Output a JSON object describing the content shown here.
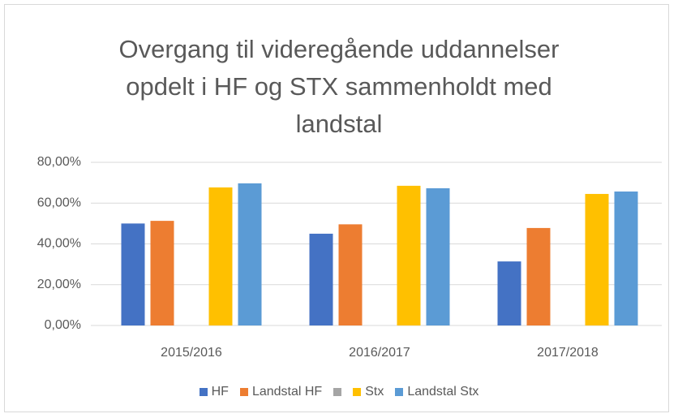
{
  "chart_data": {
    "type": "bar",
    "title": "Overgang til videregående uddannelser opdelt i HF og STX sammenholdt med landstal",
    "categories": [
      "2015/2016",
      "2016/2017",
      "2017/2018"
    ],
    "series": [
      {
        "name": "HF",
        "color": "#4472c4",
        "values": [
          50,
          45,
          31.4
        ]
      },
      {
        "name": "Landstal HF",
        "color": "#ed7d31",
        "values": [
          51.3,
          49.6,
          47.8
        ]
      },
      {
        "name": null,
        "color": "#a5a5a5",
        "values": [
          null,
          null,
          null
        ]
      },
      {
        "name": "Stx",
        "color": "#ffc000",
        "values": [
          67.7,
          68.5,
          64.5
        ]
      },
      {
        "name": "Landstal Stx",
        "color": "#5b9bd5",
        "values": [
          69.7,
          67.3,
          65.7
        ]
      }
    ],
    "ylim": [
      0,
      80
    ],
    "yticks": [
      {
        "value": 0,
        "label": "0,00%"
      },
      {
        "value": 20,
        "label": "20,00%"
      },
      {
        "value": 40,
        "label": "40,00%"
      },
      {
        "value": 60,
        "label": "60,00%"
      },
      {
        "value": 80,
        "label": "80,00%"
      }
    ],
    "grid": true,
    "legend": "bottom"
  }
}
